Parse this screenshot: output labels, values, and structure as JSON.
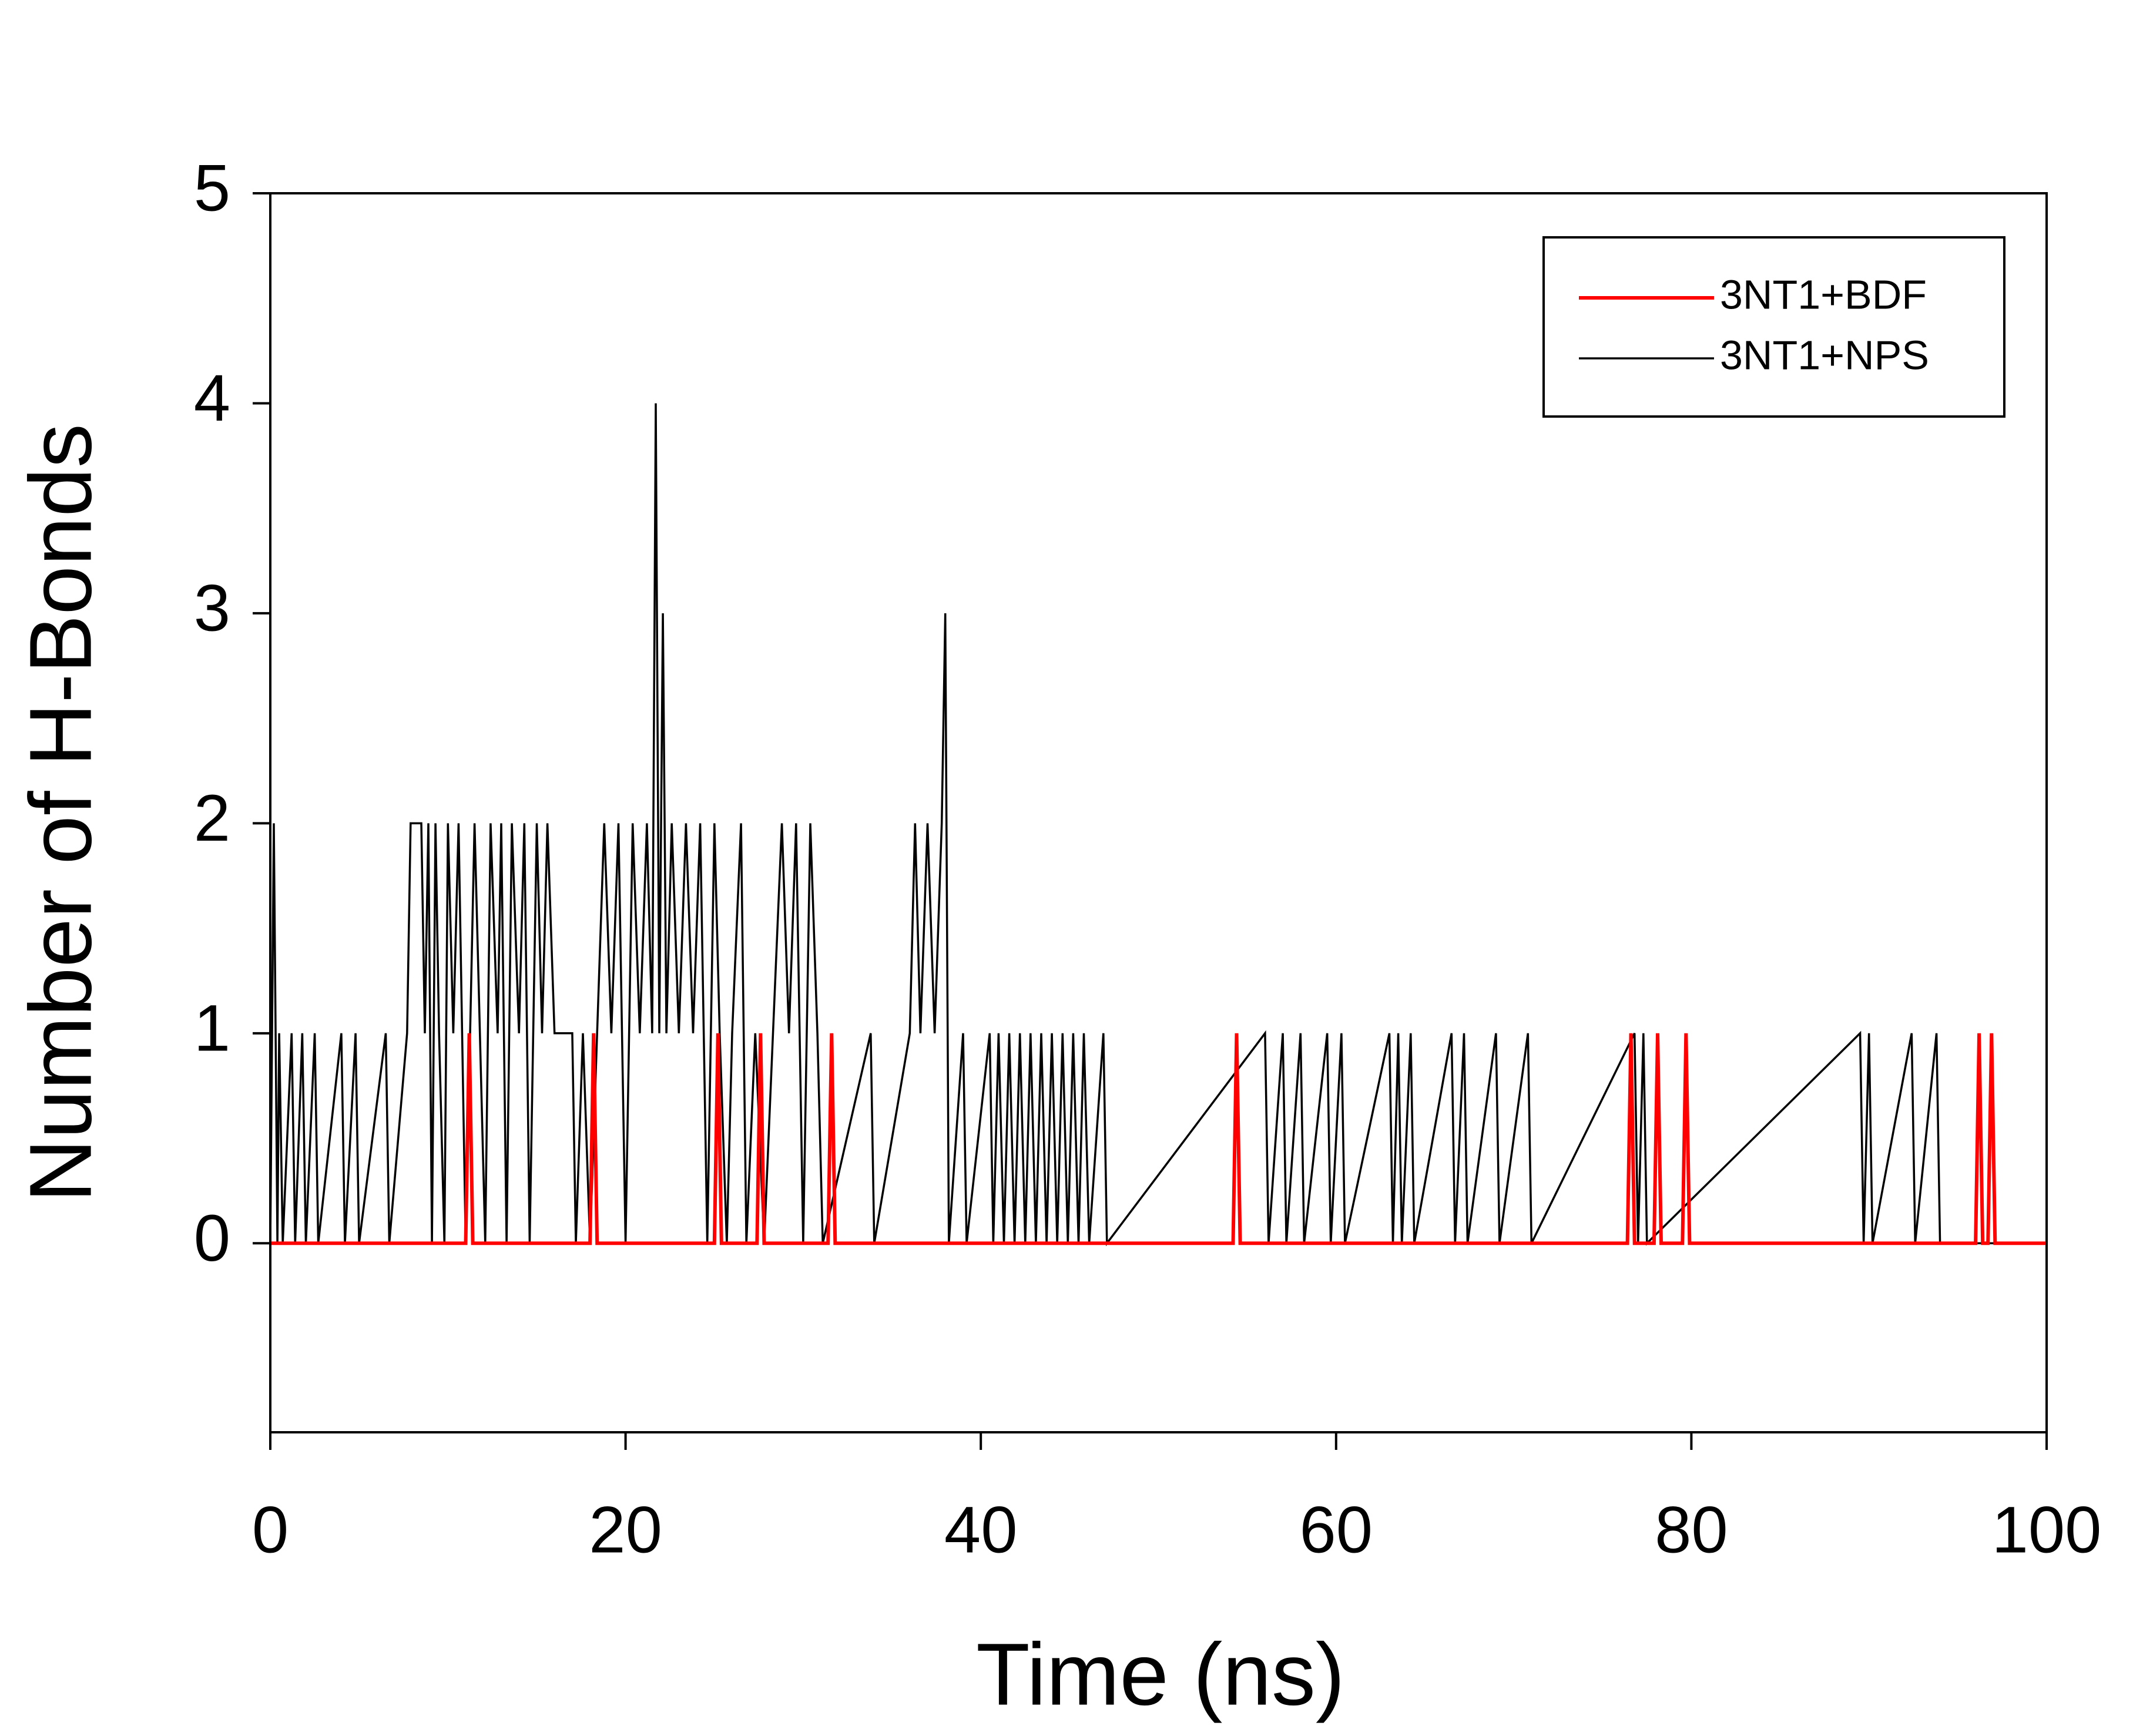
{
  "chart_data": {
    "type": "line",
    "xlabel": "Time (ns)",
    "ylabel": "Number of H-Bonds",
    "xlim": [
      0,
      100
    ],
    "xticks": [
      0,
      20,
      40,
      60,
      80,
      100
    ],
    "ylim": [
      -0.9,
      5
    ],
    "yticks": [
      0,
      1,
      2,
      3,
      4,
      5
    ],
    "grid": false,
    "legend": "upper right",
    "series": [
      {
        "name": "3NT1+BDF",
        "color": "#ff0000",
        "x": [
          0,
          11.0,
          11.2,
          11.4,
          18.0,
          18.2,
          18.4,
          25.0,
          25.2,
          25.4,
          27.4,
          27.6,
          27.8,
          31.4,
          31.6,
          31.8,
          54.2,
          54.4,
          54.6,
          76.4,
          76.6,
          76.8,
          77.9,
          78.1,
          78.3,
          79.5,
          79.7,
          79.9,
          96.0,
          96.2,
          96.4,
          96.7,
          96.9,
          97.1,
          100
        ],
        "values": [
          0,
          0,
          1,
          0,
          0,
          1,
          0,
          0,
          1,
          0,
          0,
          1,
          0,
          0,
          1,
          0,
          0,
          1,
          0,
          0,
          1,
          0,
          0,
          1,
          0,
          0,
          1,
          0,
          0,
          1,
          0,
          0,
          1,
          0,
          0
        ]
      },
      {
        "name": "3NT1+NPS",
        "color": "#000000",
        "x": [
          0,
          0.2,
          0.4,
          0.5,
          0.7,
          1.2,
          1.4,
          1.8,
          2.0,
          2.5,
          2.7,
          4.0,
          4.2,
          4.8,
          5.0,
          6.5,
          6.7,
          7.7,
          7.9,
          8.5,
          8.7,
          8.9,
          9.1,
          9.3,
          9.5,
          9.8,
          10.0,
          10.3,
          10.6,
          11.0,
          11.5,
          11.8,
          12.1,
          12.4,
          12.8,
          13.0,
          13.3,
          13.6,
          14.0,
          14.3,
          14.6,
          15.0,
          15.3,
          15.6,
          16.0,
          17.0,
          17.2,
          17.6,
          18.0,
          18.4,
          18.8,
          19.2,
          19.6,
          20.0,
          20.4,
          20.8,
          21.2,
          21.5,
          21.7,
          21.9,
          22.1,
          22.3,
          22.6,
          23.0,
          23.4,
          23.8,
          24.2,
          24.6,
          25.0,
          25.3,
          25.7,
          26.0,
          26.5,
          26.8,
          27.3,
          27.8,
          28.3,
          28.8,
          29.2,
          29.6,
          30.0,
          30.4,
          30.8,
          31.1,
          33.8,
          34.0,
          36.0,
          36.3,
          36.6,
          37.0,
          37.4,
          37.8,
          38.0,
          38.2,
          39.0,
          39.2,
          40.5,
          40.7,
          41.0,
          41.3,
          41.6,
          41.9,
          42.2,
          42.5,
          42.8,
          43.1,
          43.4,
          43.7,
          44.0,
          44.3,
          44.6,
          44.9,
          45.2,
          45.5,
          45.8,
          46.1,
          46.9,
          47.1,
          56.0,
          56.2,
          57.0,
          57.2,
          58.0,
          58.2,
          59.5,
          59.7,
          60.3,
          60.5,
          63.0,
          63.2,
          63.5,
          63.7,
          64.2,
          64.4,
          66.5,
          66.7,
          67.2,
          67.4,
          69.0,
          69.2,
          70.8,
          71.0,
          76.8,
          77.0,
          77.3,
          77.5,
          89.5,
          89.7,
          90.0,
          90.2,
          92.4,
          92.6,
          93.8,
          94.0,
          100
        ],
        "values": [
          0,
          2,
          0,
          1,
          0,
          1,
          0,
          1,
          0,
          1,
          0,
          1,
          0,
          1,
          0,
          1,
          0,
          1,
          2,
          2,
          1,
          2,
          0,
          2,
          1,
          0,
          2,
          1,
          2,
          0,
          2,
          1,
          0,
          2,
          1,
          2,
          0,
          2,
          1,
          2,
          0,
          2,
          1,
          2,
          1,
          1,
          0,
          1,
          0,
          1,
          2,
          1,
          2,
          0,
          2,
          1,
          2,
          1,
          4,
          1,
          3,
          1,
          2,
          1,
          2,
          1,
          2,
          0,
          2,
          1,
          0,
          1,
          2,
          0,
          1,
          0,
          1,
          2,
          1,
          2,
          0,
          2,
          1,
          0,
          1,
          0,
          1,
          2,
          1,
          2,
          1,
          2,
          3,
          0,
          1,
          0,
          1,
          0,
          1,
          0,
          1,
          0,
          1,
          0,
          1,
          0,
          1,
          0,
          1,
          0,
          1,
          0,
          1,
          0,
          1,
          0,
          1,
          0,
          1,
          0,
          1,
          0,
          1,
          0,
          1,
          0,
          1,
          0,
          1,
          0,
          1,
          0,
          1,
          0,
          1,
          0,
          1,
          0,
          1,
          0,
          1,
          0,
          1,
          0,
          1,
          0,
          1,
          0,
          1,
          0,
          1,
          0,
          1,
          0,
          0
        ]
      }
    ]
  }
}
